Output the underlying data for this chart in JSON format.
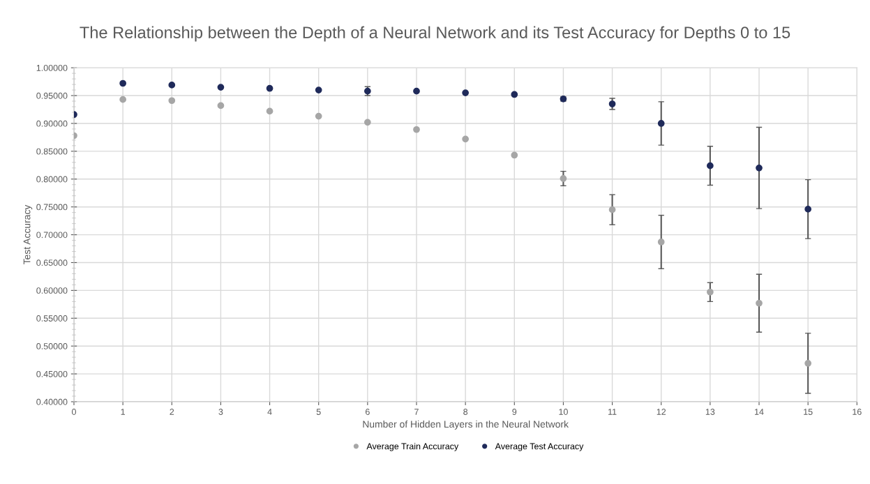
{
  "chart_data": {
    "type": "scatter",
    "title": "The Relationship between the Depth of a Neural Network and its Test Accuracy for Depths 0 to 15",
    "xlabel": "Number of Hidden Layers in the Neural Network",
    "ylabel": "Test Accuracy",
    "x": [
      0,
      1,
      2,
      3,
      4,
      5,
      6,
      7,
      8,
      9,
      10,
      11,
      12,
      13,
      14,
      15
    ],
    "series": [
      {
        "name": "Average Train Accuracy",
        "color": "#a6a6a6",
        "values": [
          0.878,
          0.943,
          0.941,
          0.932,
          0.922,
          0.913,
          0.902,
          0.889,
          0.872,
          0.843,
          0.801,
          0.745,
          0.687,
          0.597,
          0.577,
          0.469
        ],
        "errors": [
          null,
          null,
          null,
          null,
          null,
          null,
          null,
          null,
          null,
          null,
          0.013,
          0.027,
          0.048,
          0.017,
          0.052,
          0.054
        ]
      },
      {
        "name": "Average Test Accuracy",
        "color": "#1f2a5a",
        "values": [
          0.916,
          0.972,
          0.969,
          0.965,
          0.963,
          0.96,
          0.958,
          0.958,
          0.955,
          0.952,
          0.944,
          0.935,
          0.9,
          0.824,
          0.82,
          0.746
        ],
        "errors": [
          null,
          null,
          null,
          null,
          null,
          null,
          0.008,
          null,
          null,
          null,
          0.004,
          0.01,
          0.039,
          0.035,
          0.073,
          0.053
        ]
      }
    ],
    "xlim": [
      0,
      16
    ],
    "xticks": [
      0,
      1,
      2,
      3,
      4,
      5,
      6,
      7,
      8,
      9,
      10,
      11,
      12,
      13,
      14,
      15,
      16
    ],
    "ylim": [
      0.4,
      1.0
    ],
    "yticks": [
      {
        "value": 0.4,
        "label": "0.40000"
      },
      {
        "value": 0.45,
        "label": "0.45000"
      },
      {
        "value": 0.5,
        "label": "0.50000"
      },
      {
        "value": 0.55,
        "label": "0.55000"
      },
      {
        "value": 0.6,
        "label": "0.60000"
      },
      {
        "value": 0.65,
        "label": "0.65000"
      },
      {
        "value": 0.7,
        "label": "0.70000"
      },
      {
        "value": 0.75,
        "label": "0.75000"
      },
      {
        "value": 0.8,
        "label": "0.80000"
      },
      {
        "value": 0.85,
        "label": "0.85000"
      },
      {
        "value": 0.9,
        "label": "0.90000"
      },
      {
        "value": 0.95,
        "label": "0.95000"
      },
      {
        "value": 1.0,
        "label": "1.00000"
      }
    ],
    "grid": true,
    "legend": "bottom",
    "marker": "circle"
  }
}
